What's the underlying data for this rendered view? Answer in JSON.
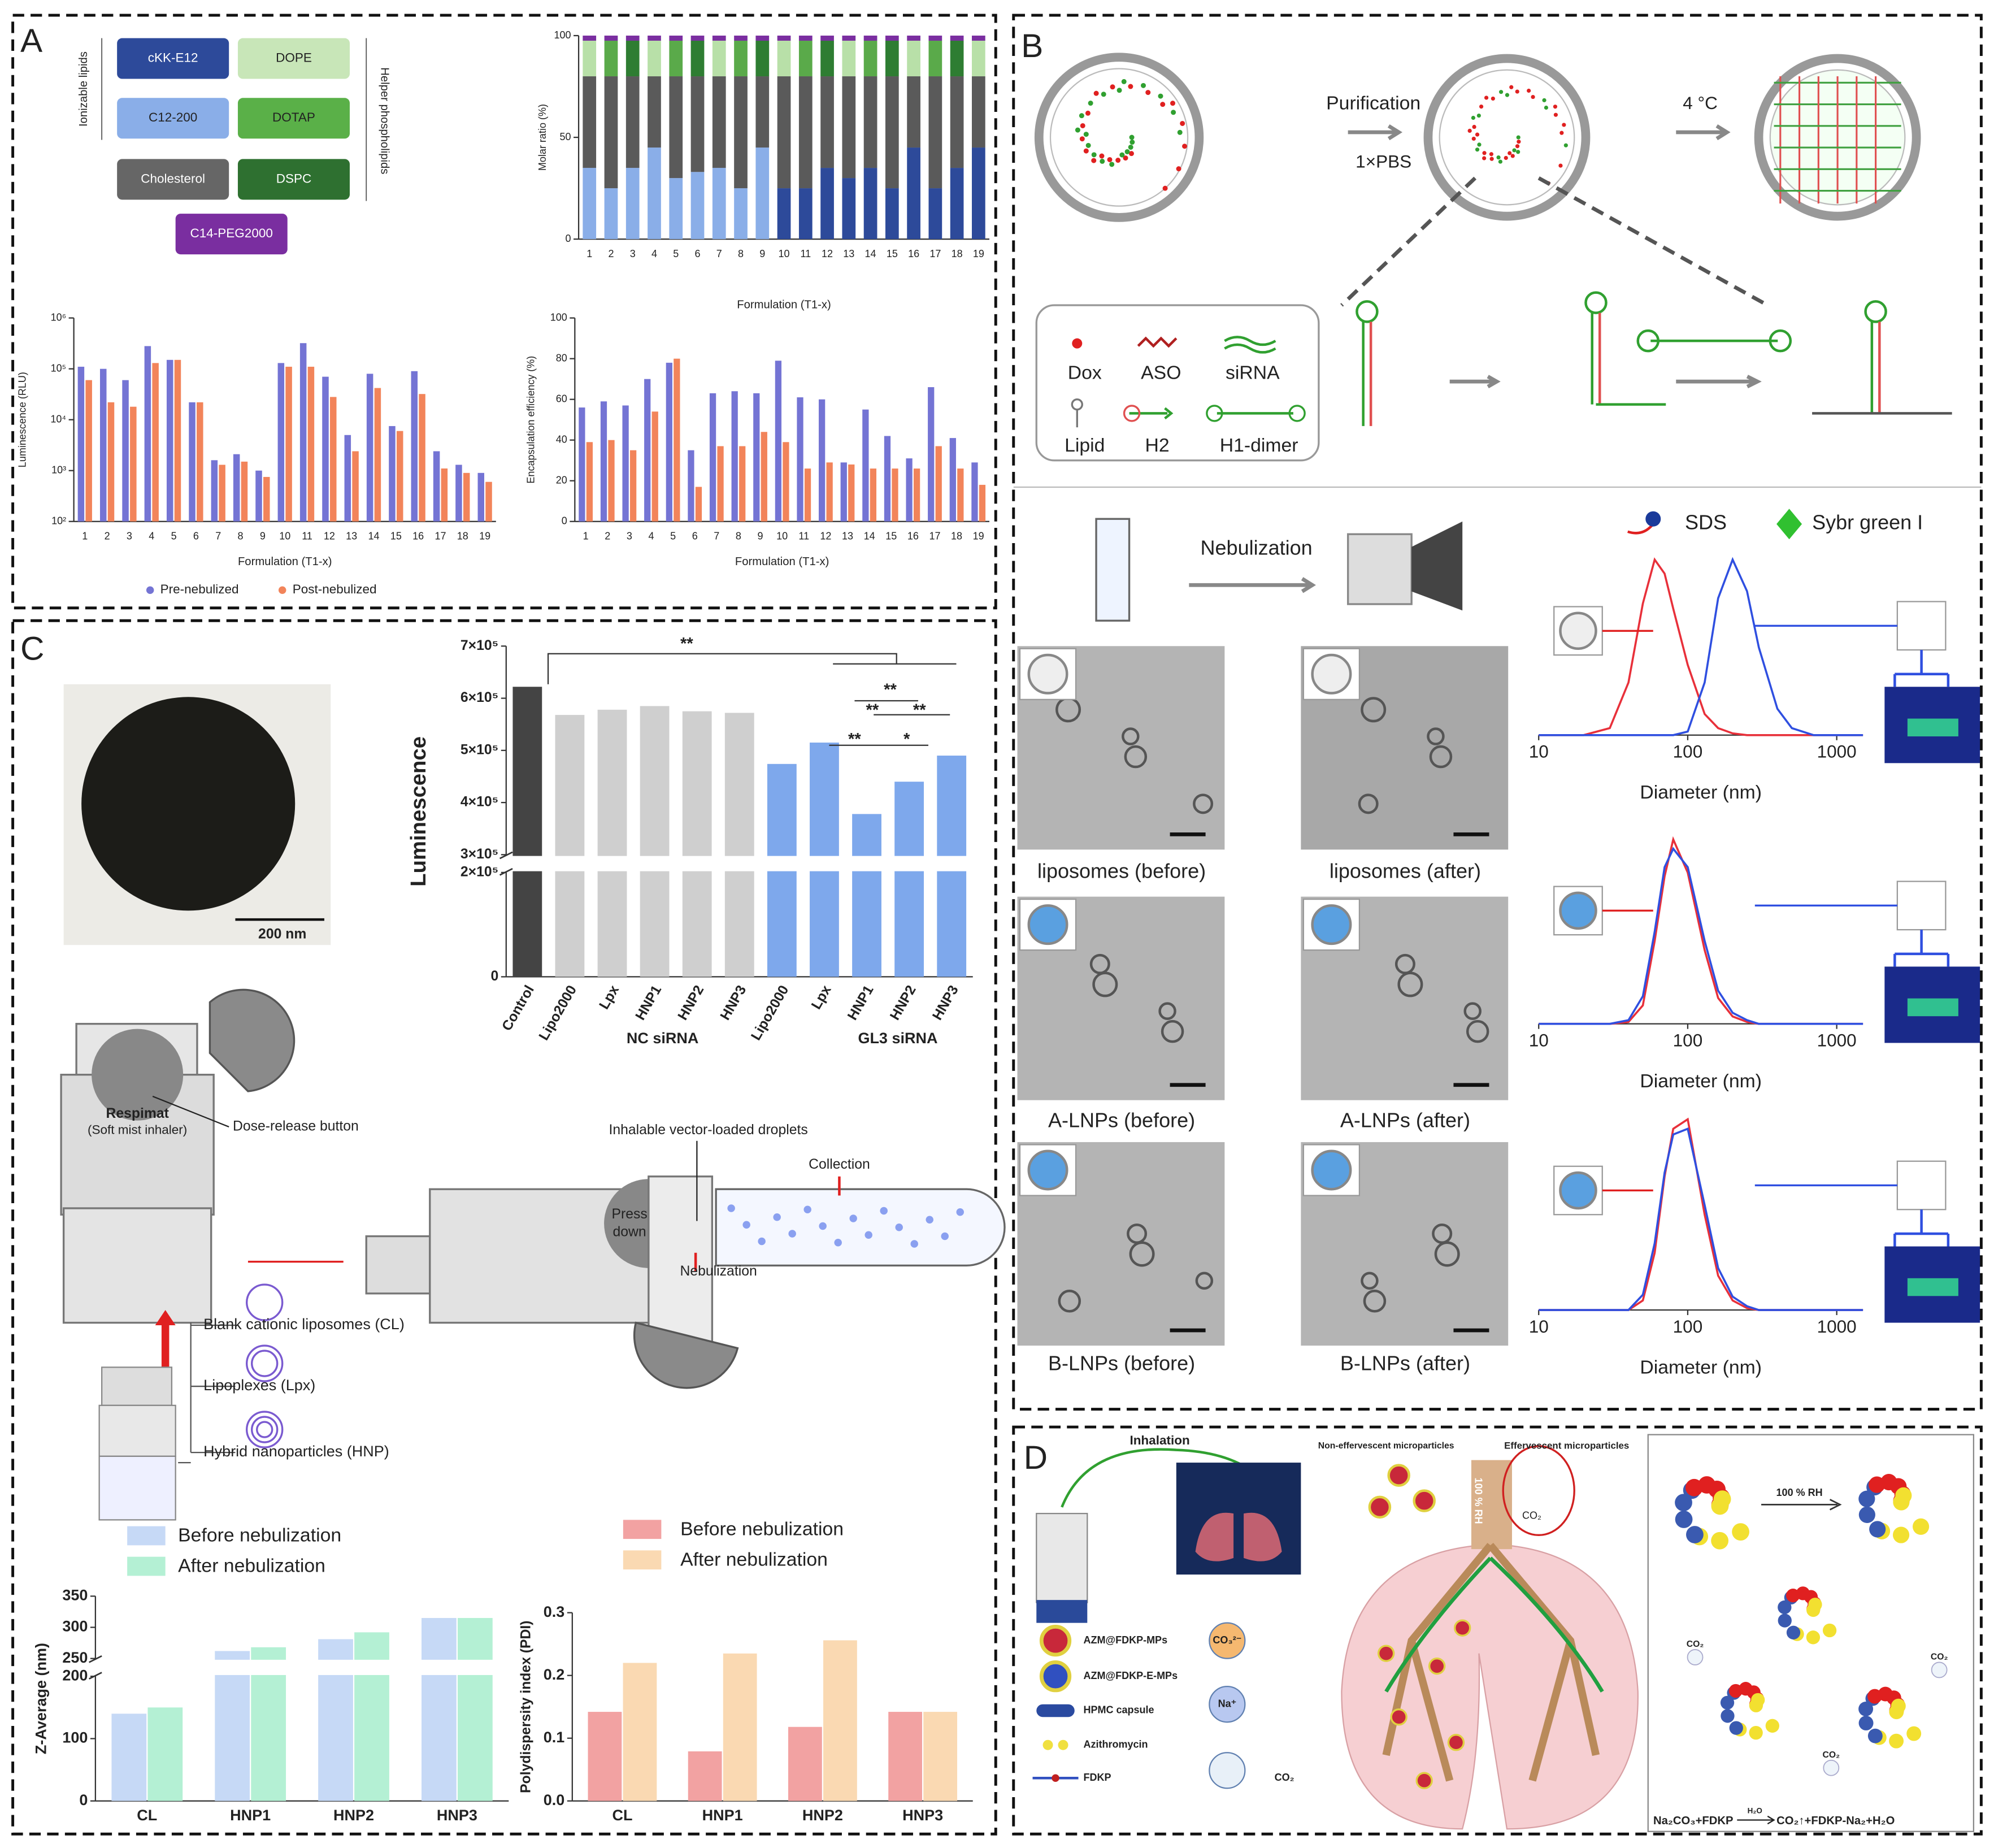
{
  "panels": {
    "a": {
      "label": "A",
      "lipids": [
        "cKK-E12",
        "DOPE",
        "C12-200",
        "DOTAP",
        "Cholesterol",
        "DSPC",
        "C14-PEG2000"
      ],
      "ionizable_label": "Ionizable lipids",
      "helper_label": "Helper phospholipids",
      "molar_chart": {
        "type": "stacked_bar",
        "categories": [
          "1",
          "2",
          "3",
          "4",
          "5",
          "6",
          "7",
          "8",
          "9",
          "10",
          "11",
          "12",
          "13",
          "14",
          "15",
          "16",
          "17",
          "18",
          "19"
        ],
        "ylim": [
          0,
          100
        ],
        "yticks": [
          0,
          50,
          100
        ],
        "ylabel": "Molar ratio (%)",
        "xlabel": "Formulation (T1-x)",
        "series": [
          {
            "colors": [
              "#8aaee8",
              "#8aaee8",
              "#8aaee8",
              "#8aaee8",
              "#8aaee8",
              "#8aaee8",
              "#8aaee8",
              "#8aaee8",
              "#8aaee8",
              "#2d4a9a",
              "#2d4a9a",
              "#2d4a9a",
              "#2d4a9a",
              "#2d4a9a",
              "#2d4a9a",
              "#2d4a9a",
              "#2d4a9a",
              "#2d4a9a",
              "#2d4a9a"
            ],
            "values": [
              35,
              25,
              35,
              45,
              30,
              33,
              35,
              25,
              45,
              25,
              25,
              35,
              30,
              35,
              25,
              45,
              25,
              35,
              45
            ]
          },
          {
            "color": "#5a5a5a",
            "values": [
              45,
              55,
              45,
              35,
              50,
              47,
              45,
              55,
              35,
              55,
              55,
              45,
              50,
              45,
              55,
              35,
              55,
              45,
              35
            ]
          },
          {
            "colors": [
              "#b8e0a8",
              "#5aaa4a",
              "#2e7d32",
              "#b8e0a8",
              "#5aaa4a",
              "#2e7d32",
              "#b8e0a8",
              "#5aaa4a",
              "#2e7d32",
              "#b8e0a8",
              "#5aaa4a",
              "#2e7d32",
              "#b8e0a8",
              "#5aaa4a",
              "#2e7d32",
              "#b8e0a8",
              "#5aaa4a",
              "#2e7d32",
              "#b8e0a8"
            ],
            "values": [
              17.5,
              17.5,
              17.5,
              17.5,
              17.5,
              17.5,
              17.5,
              17.5,
              17.5,
              17.5,
              17.5,
              17.5,
              17.5,
              17.5,
              17.5,
              17.5,
              17.5,
              17.5,
              17.5
            ]
          },
          {
            "color": "#7a2ea0",
            "values": [
              2.5,
              2.5,
              2.5,
              2.5,
              2.5,
              2.5,
              2.5,
              2.5,
              2.5,
              2.5,
              2.5,
              2.5,
              2.5,
              2.5,
              2.5,
              2.5,
              2.5,
              2.5,
              2.5
            ]
          }
        ]
      },
      "luminescence_chart": {
        "type": "bar",
        "log": true,
        "categories": [
          "1",
          "2",
          "3",
          "4",
          "5",
          "6",
          "7",
          "8",
          "9",
          "10",
          "11",
          "12",
          "13",
          "14",
          "15",
          "16",
          "17",
          "18",
          "19"
        ],
        "ylim": [
          100,
          1000000
        ],
        "yticks": [
          {
            "value": 100,
            "label": "10²"
          },
          {
            "value": 1000,
            "label": "10³"
          },
          {
            "value": 10000,
            "label": "10⁴"
          },
          {
            "value": 100000,
            "label": "10⁵"
          },
          {
            "value": 1000000,
            "label": "10⁶"
          }
        ],
        "ylabel": "Luminescence (RLU)",
        "xlabel": "Formulation (T1-x)",
        "series": [
          {
            "name": "Pre-nebulized",
            "color": "#7474d4",
            "values": [
              110000,
              100000,
              60000,
              280000,
              150000,
              22000,
              1600,
              2100,
              1000,
              130000,
              320000,
              70000,
              5000,
              80000,
              7500,
              90000,
              2400,
              1300,
              900
            ]
          },
          {
            "name": "Post-nebulized",
            "color": "#f2845a",
            "values": [
              60000,
              22000,
              18000,
              130000,
              150000,
              22000,
              1300,
              1500,
              750,
              110000,
              110000,
              28000,
              2400,
              42000,
              6000,
              32000,
              1100,
              900,
              600
            ]
          }
        ]
      },
      "encapsulation_chart": {
        "type": "bar",
        "categories": [
          "1",
          "2",
          "3",
          "4",
          "5",
          "6",
          "7",
          "8",
          "9",
          "10",
          "11",
          "12",
          "13",
          "14",
          "15",
          "16",
          "17",
          "18",
          "19"
        ],
        "ylim": [
          0,
          100
        ],
        "yticks": [
          0,
          20,
          40,
          60,
          80,
          100
        ],
        "ylabel": "Encapsulation efficiency (%)",
        "xlabel": "Formulation (T1-x)",
        "series": [
          {
            "color": "#7474d4",
            "values": [
              56,
              59,
              57,
              70,
              78,
              35,
              63,
              64,
              63,
              79,
              61,
              60,
              29,
              55,
              42,
              31,
              66,
              41,
              29
            ]
          },
          {
            "color": "#f2845a",
            "values": [
              39,
              40,
              35,
              54,
              80,
              17,
              37,
              37,
              44,
              39,
              26,
              29,
              28,
              26,
              26,
              26,
              37,
              26,
              18
            ]
          }
        ]
      }
    },
    "b": {
      "label": "B",
      "steps": [
        "Purification",
        "1×PBS",
        "4 °C"
      ],
      "legend_items": [
        "Dox",
        "ASO",
        "siRNA",
        "Lipid",
        "H2",
        "H1-dimer"
      ],
      "nebulization": "Nebulization",
      "reagents": [
        "SDS",
        "Sybr green I"
      ],
      "tem_captions": [
        "liposomes (before)",
        "liposomes (after)",
        "A-LNPs (before)",
        "A-LNPs (after)",
        "B-LNPs (before)",
        "B-LNPs (after)"
      ],
      "size_charts": [
        {
          "type": "line",
          "xlog": true,
          "x": [
            10,
            20,
            30,
            40,
            50,
            60,
            70,
            80,
            100,
            130,
            160,
            200,
            250,
            300,
            400,
            500,
            700,
            1000,
            1500
          ],
          "xlim": [
            10,
            1500
          ],
          "xticks": [
            10,
            100,
            1000
          ],
          "ylim": [
            0,
            1
          ],
          "xlabel": "Diameter (nm)",
          "series": [
            {
              "color": "#e8303a",
              "values": [
                0,
                0,
                0.04,
                0.3,
                0.75,
                1,
                0.92,
                0.72,
                0.4,
                0.12,
                0.04,
                0.01,
                0,
                0,
                0,
                0,
                0,
                0,
                0
              ]
            },
            {
              "color": "#2f4fe0",
              "values": [
                0,
                0,
                0,
                0,
                0,
                0,
                0,
                0,
                0.02,
                0.3,
                0.78,
                1,
                0.82,
                0.5,
                0.15,
                0.04,
                0,
                0,
                0
              ]
            }
          ]
        },
        {
          "type": "line",
          "xlog": true,
          "x": [
            10,
            20,
            30,
            40,
            50,
            60,
            70,
            80,
            100,
            130,
            160,
            200,
            250,
            300,
            400,
            500,
            700,
            1000,
            1500
          ],
          "xlim": [
            10,
            1500
          ],
          "xticks": [
            10,
            100,
            1000
          ],
          "ylim": [
            0,
            1
          ],
          "xlabel": "Diameter (nm)",
          "series": [
            {
              "color": "#e8303a",
              "values": [
                0,
                0,
                0,
                0.01,
                0.1,
                0.45,
                0.8,
                1,
                0.82,
                0.4,
                0.14,
                0.04,
                0.01,
                0,
                0,
                0,
                0,
                0,
                0
              ]
            },
            {
              "color": "#2f4fe0",
              "values": [
                0,
                0,
                0,
                0.02,
                0.15,
                0.5,
                0.85,
                0.95,
                0.85,
                0.45,
                0.18,
                0.06,
                0.02,
                0,
                0,
                0,
                0,
                0,
                0
              ]
            }
          ]
        },
        {
          "type": "line",
          "xlog": true,
          "x": [
            10,
            20,
            30,
            40,
            50,
            60,
            70,
            80,
            100,
            130,
            160,
            200,
            250,
            300,
            400,
            500,
            700,
            1000,
            1500
          ],
          "xlim": [
            10,
            1500
          ],
          "xticks": [
            10,
            100,
            1000
          ],
          "ylim": [
            0,
            1
          ],
          "xlabel": "Diameter (nm)",
          "series": [
            {
              "color": "#e8303a",
              "values": [
                0,
                0,
                0,
                0,
                0.05,
                0.3,
                0.7,
                0.95,
                1,
                0.5,
                0.18,
                0.05,
                0.01,
                0,
                0,
                0,
                0,
                0,
                0
              ]
            },
            {
              "color": "#2f4fe0",
              "values": [
                0,
                0,
                0,
                0,
                0.08,
                0.35,
                0.72,
                0.92,
                0.95,
                0.55,
                0.22,
                0.07,
                0.02,
                0,
                0,
                0,
                0,
                0,
                0
              ]
            }
          ]
        }
      ]
    },
    "c": {
      "label": "C",
      "scale_bar": "200 nm",
      "luminescence_chart": {
        "type": "bar",
        "categories": [
          "Control",
          "Lipo2000",
          "Lpx",
          "HNP1",
          "HNP2",
          "HNP3",
          "Lipo2000",
          "Lpx",
          "HNP1",
          "HNP2",
          "HNP3"
        ],
        "values": [
          622000,
          568000,
          578000,
          585000,
          575000,
          572000,
          474000,
          515000,
          378000,
          440000,
          490000
        ],
        "colors": [
          "#444444",
          "#cfcfcf",
          "#cfcfcf",
          "#cfcfcf",
          "#cfcfcf",
          "#cfcfcf",
          "#7ea8ec",
          "#7ea8ec",
          "#7ea8ec",
          "#7ea8ec",
          "#7ea8ec"
        ],
        "ylim": [
          0,
          700000
        ],
        "ybreak": [
          200000,
          300000
        ],
        "yticks": [
          0,
          {
            "value": 200000,
            "label": "2×10⁵"
          },
          {
            "value": 300000,
            "label": "3×10⁵"
          },
          {
            "value": 400000,
            "label": "4×10⁵"
          },
          {
            "value": 500000,
            "label": "5×10⁵"
          },
          {
            "value": 600000,
            "label": "6×10⁵"
          },
          {
            "value": 700000,
            "label": "7×10⁵"
          }
        ],
        "ylabel": "Luminescence",
        "groups": [
          "NC siRNA",
          "GL3 siRNA"
        ],
        "significance": [
          "**",
          "**",
          "**",
          "**",
          "**",
          "*"
        ]
      },
      "device_labels": [
        "Respimat",
        "(Soft mist inhaler)",
        "Dose-release button",
        "Inhalable vector-loaded droplets",
        "Collection",
        "Press",
        "down",
        "Nebulization"
      ],
      "particle_labels": [
        "Blank cationic liposomes (CL)",
        "Lipoplexes (Lpx)",
        "Hybrid nanoparticles (HNP)"
      ],
      "zaverage_chart": {
        "type": "bar",
        "categories": [
          "CL",
          "HNP1",
          "HNP2",
          "HNP3"
        ],
        "ylim": [
          0,
          350
        ],
        "ybreak": [
          200,
          250
        ],
        "yticks": [
          0,
          100,
          200,
          250,
          300,
          350
        ],
        "ylabel": "Z-Average (nm)",
        "series": [
          {
            "name": "Before nebulization",
            "color": "#c6d9f6",
            "values": [
              140,
              262,
              281,
              315
            ]
          },
          {
            "name": "After nebulization",
            "color": "#b4f0d4",
            "values": [
              150,
              268,
              292,
              315
            ]
          }
        ]
      },
      "pdi_chart": {
        "type": "bar",
        "categories": [
          "CL",
          "HNP1",
          "HNP2",
          "HNP3"
        ],
        "ylim": [
          0,
          0.3
        ],
        "yticks": [
          {
            "value": 0,
            "label": "0.0"
          },
          0.1,
          0.2,
          0.3
        ],
        "ylabel": "Polydispersity index (PDI)",
        "series": [
          {
            "name": "Before nebulization",
            "color": "#f2a2a2",
            "values": [
              0.142,
              0.079,
              0.118,
              0.142
            ]
          },
          {
            "name": "After nebulization",
            "color": "#fad9b2",
            "values": [
              0.22,
              0.235,
              0.256,
              0.142
            ]
          }
        ]
      }
    },
    "d": {
      "label": "D",
      "labels": [
        "Inhalation",
        "Non-effervescent microparticles",
        "Effervescent microparticles",
        "100 % RH",
        "CO₂"
      ],
      "legend_items": [
        "AZM@FDKP-MPs",
        "AZM@FDKP-E-MPs",
        "HPMC capsule",
        "Azithromycin",
        "FDKP"
      ],
      "ions": [
        "CO₃²⁻",
        "Na⁺",
        "CO₂"
      ],
      "right_labels": [
        "100 % RH",
        "CO₂",
        "CO₂",
        "CO₂"
      ],
      "equation": [
        "Na₂CO₃+FDKP",
        "H₂O",
        "CO₂↑+FDKP-Na₂+H₂O"
      ]
    }
  }
}
